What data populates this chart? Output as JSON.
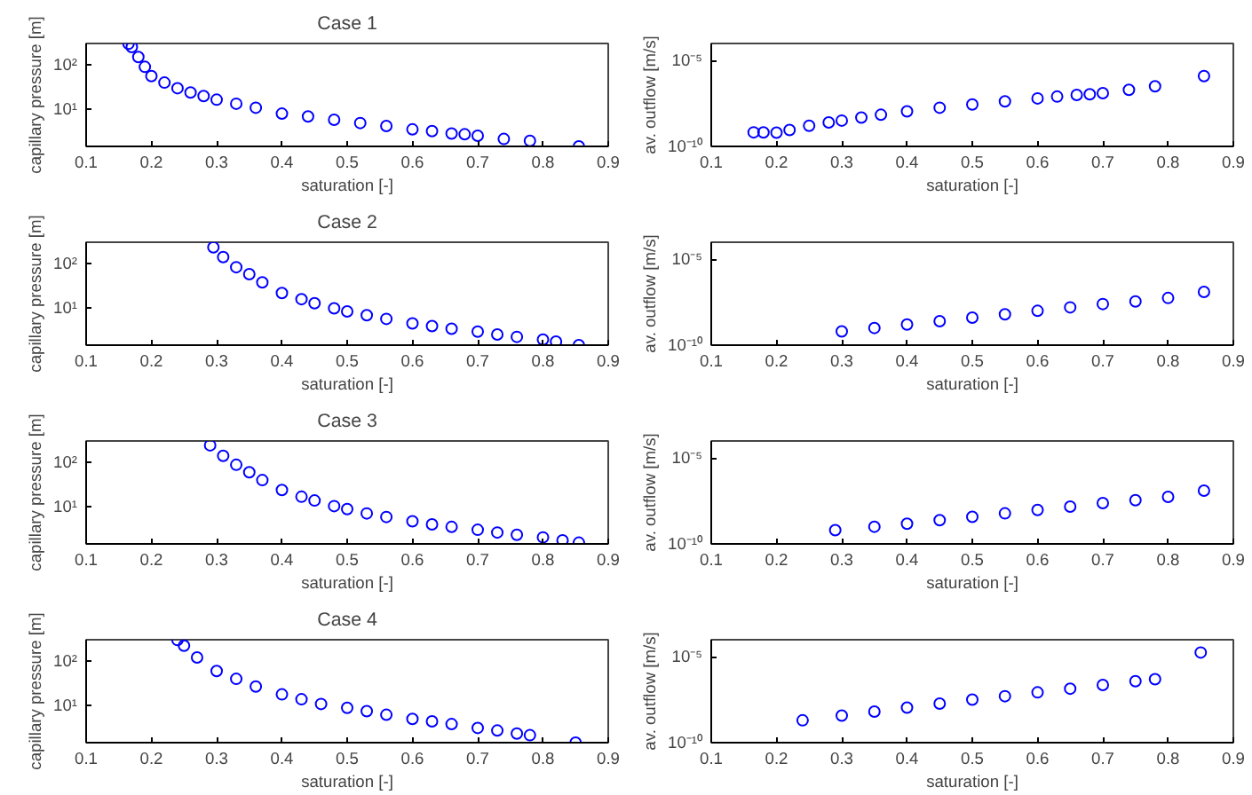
{
  "chart_data": [
    {
      "type": "scatter",
      "title": "Case 1",
      "xlabel": "saturation [-]",
      "ylabel": "capillary pressure [m]",
      "log": "y",
      "marker": "circle",
      "xlim": [
        0.1,
        0.9
      ],
      "xticks": [
        0.1,
        0.2,
        0.3,
        0.4,
        0.5,
        0.6,
        0.7,
        0.8,
        0.9
      ],
      "ylim": [
        1.5,
        300
      ],
      "yticks": [
        {
          "value": 10,
          "label": "10¹"
        },
        {
          "value": 100,
          "label": "10²"
        }
      ],
      "series": [
        {
          "color": "#0000ff",
          "x": [
            0.165,
            0.17,
            0.18,
            0.19,
            0.2,
            0.22,
            0.24,
            0.26,
            0.28,
            0.3,
            0.33,
            0.36,
            0.4,
            0.44,
            0.48,
            0.52,
            0.56,
            0.6,
            0.63,
            0.66,
            0.68,
            0.7,
            0.74,
            0.78,
            0.855
          ],
          "values": [
            295,
            250,
            150,
            90,
            56,
            40,
            30,
            24,
            20,
            16.6,
            13.5,
            11,
            8.1,
            7,
            5.9,
            5,
            4.3,
            3.6,
            3.3,
            2.9,
            2.8,
            2.6,
            2.2,
            2.0,
            1.5
          ]
        }
      ]
    },
    {
      "type": "scatter",
      "xlabel": "saturation [-]",
      "ylabel": "av. outflow [m/s]",
      "log": "y",
      "marker": "circle",
      "xlim": [
        0.1,
        0.9
      ],
      "xticks": [
        0.1,
        0.2,
        0.3,
        0.4,
        0.5,
        0.6,
        0.7,
        0.8,
        0.9
      ],
      "ylim": [
        1e-10,
        0.0001
      ],
      "yticks": [
        {
          "value": 1e-10,
          "label": "10⁻¹⁰"
        },
        {
          "value": 1e-05,
          "label": "10⁻⁵"
        }
      ],
      "series": [
        {
          "color": "#0000ff",
          "x": [
            0.165,
            0.18,
            0.2,
            0.22,
            0.25,
            0.28,
            0.3,
            0.33,
            0.36,
            0.4,
            0.45,
            0.5,
            0.55,
            0.6,
            0.63,
            0.66,
            0.68,
            0.7,
            0.74,
            0.78,
            0.855
          ],
          "values": [
            6.6e-10,
            6.5e-10,
            6.3e-10,
            9e-10,
            1.6e-09,
            2.5e-09,
            3.2e-09,
            4.8e-09,
            7e-09,
            1.1e-08,
            1.8e-08,
            2.8e-08,
            4.2e-08,
            6.3e-08,
            8e-08,
            1e-07,
            1.1e-07,
            1.26e-07,
            2e-07,
            3.2e-07,
            1.26e-06
          ]
        }
      ]
    },
    {
      "type": "scatter",
      "title": "Case 2",
      "xlabel": "saturation [-]",
      "ylabel": "capillary pressure [m]",
      "log": "y",
      "marker": "circle",
      "xlim": [
        0.1,
        0.9
      ],
      "xticks": [
        0.1,
        0.2,
        0.3,
        0.4,
        0.5,
        0.6,
        0.7,
        0.8,
        0.9
      ],
      "ylim": [
        1.5,
        300
      ],
      "yticks": [
        {
          "value": 10,
          "label": "10¹"
        },
        {
          "value": 100,
          "label": "10²"
        }
      ],
      "series": [
        {
          "color": "#0000ff",
          "x": [
            0.295,
            0.31,
            0.33,
            0.35,
            0.37,
            0.4,
            0.43,
            0.45,
            0.48,
            0.5,
            0.53,
            0.56,
            0.6,
            0.63,
            0.66,
            0.7,
            0.73,
            0.76,
            0.8,
            0.82,
            0.855
          ],
          "values": [
            230,
            140,
            83,
            58,
            38,
            22,
            16,
            13,
            10,
            8.5,
            7,
            5.8,
            4.6,
            4,
            3.5,
            3,
            2.6,
            2.3,
            2,
            1.8,
            1.5
          ]
        }
      ]
    },
    {
      "type": "scatter",
      "xlabel": "saturation [-]",
      "ylabel": "av. outflow [m/s]",
      "log": "y",
      "marker": "circle",
      "xlim": [
        0.1,
        0.9
      ],
      "xticks": [
        0.1,
        0.2,
        0.3,
        0.4,
        0.5,
        0.6,
        0.7,
        0.8,
        0.9
      ],
      "ylim": [
        1e-10,
        0.0001
      ],
      "yticks": [
        {
          "value": 1e-10,
          "label": "10⁻¹⁰"
        },
        {
          "value": 1e-05,
          "label": "10⁻⁵"
        }
      ],
      "series": [
        {
          "color": "#0000ff",
          "x": [
            0.3,
            0.35,
            0.4,
            0.45,
            0.5,
            0.55,
            0.6,
            0.65,
            0.7,
            0.75,
            0.8,
            0.855
          ],
          "values": [
            6.3e-10,
            1e-09,
            1.6e-09,
            2.5e-09,
            4e-09,
            6.3e-09,
            1e-08,
            1.6e-08,
            2.5e-08,
            3.5e-08,
            5.6e-08,
            1.26e-07
          ]
        }
      ]
    },
    {
      "type": "scatter",
      "title": "Case 3",
      "xlabel": "saturation [-]",
      "ylabel": "capillary pressure [m]",
      "log": "y",
      "marker": "circle",
      "xlim": [
        0.1,
        0.9
      ],
      "xticks": [
        0.1,
        0.2,
        0.3,
        0.4,
        0.5,
        0.6,
        0.7,
        0.8,
        0.9
      ],
      "ylim": [
        1.5,
        300
      ],
      "yticks": [
        {
          "value": 10,
          "label": "10¹"
        },
        {
          "value": 100,
          "label": "10²"
        }
      ],
      "series": [
        {
          "color": "#0000ff",
          "x": [
            0.29,
            0.31,
            0.33,
            0.35,
            0.37,
            0.4,
            0.43,
            0.45,
            0.48,
            0.5,
            0.53,
            0.56,
            0.6,
            0.63,
            0.66,
            0.7,
            0.73,
            0.76,
            0.8,
            0.83,
            0.855
          ],
          "values": [
            240,
            140,
            88,
            60,
            40,
            24,
            17,
            14,
            10.5,
            9,
            7.2,
            6,
            4.8,
            4.1,
            3.6,
            3.1,
            2.7,
            2.4,
            2.1,
            1.8,
            1.6
          ]
        }
      ]
    },
    {
      "type": "scatter",
      "xlabel": "saturation [-]",
      "ylabel": "av. outflow [m/s]",
      "log": "y",
      "marker": "circle",
      "xlim": [
        0.1,
        0.9
      ],
      "xticks": [
        0.1,
        0.2,
        0.3,
        0.4,
        0.5,
        0.6,
        0.7,
        0.8,
        0.9
      ],
      "ylim": [
        1e-10,
        0.0001
      ],
      "yticks": [
        {
          "value": 1e-10,
          "label": "10⁻¹⁰"
        },
        {
          "value": 1e-05,
          "label": "10⁻⁵"
        }
      ],
      "series": [
        {
          "color": "#0000ff",
          "x": [
            0.29,
            0.35,
            0.4,
            0.45,
            0.5,
            0.55,
            0.6,
            0.65,
            0.7,
            0.75,
            0.8,
            0.855
          ],
          "values": [
            6.3e-10,
            1e-09,
            1.5e-09,
            2.4e-09,
            3.8e-09,
            6e-09,
            9.5e-09,
            1.5e-08,
            2.4e-08,
            3.5e-08,
            5.5e-08,
            1.26e-07
          ]
        }
      ]
    },
    {
      "type": "scatter",
      "title": "Case 4",
      "xlabel": "saturation [-]",
      "ylabel": "capillary pressure [m]",
      "log": "y",
      "marker": "circle",
      "xlim": [
        0.1,
        0.9
      ],
      "xticks": [
        0.1,
        0.2,
        0.3,
        0.4,
        0.5,
        0.6,
        0.7,
        0.8,
        0.9
      ],
      "ylim": [
        1.5,
        300
      ],
      "yticks": [
        {
          "value": 10,
          "label": "10¹"
        },
        {
          "value": 100,
          "label": "10²"
        }
      ],
      "series": [
        {
          "color": "#0000ff",
          "x": [
            0.24,
            0.25,
            0.27,
            0.3,
            0.33,
            0.36,
            0.4,
            0.43,
            0.46,
            0.5,
            0.53,
            0.56,
            0.6,
            0.63,
            0.66,
            0.7,
            0.73,
            0.76,
            0.78,
            0.85
          ],
          "values": [
            295,
            220,
            120,
            60,
            40,
            27,
            18,
            14,
            11,
            9,
            7.6,
            6.3,
            5.1,
            4.5,
            3.9,
            3.2,
            2.8,
            2.4,
            2.2,
            1.5
          ]
        }
      ]
    },
    {
      "type": "scatter",
      "xlabel": "saturation [-]",
      "ylabel": "av. outflow [m/s]",
      "log": "y",
      "marker": "circle",
      "xlim": [
        0.1,
        0.9
      ],
      "xticks": [
        0.1,
        0.2,
        0.3,
        0.4,
        0.5,
        0.6,
        0.7,
        0.8,
        0.9
      ],
      "ylim": [
        1e-10,
        0.0001
      ],
      "yticks": [
        {
          "value": 1e-10,
          "label": "10⁻¹⁰"
        },
        {
          "value": 1e-05,
          "label": "10⁻⁵"
        }
      ],
      "series": [
        {
          "color": "#0000ff",
          "x": [
            0.24,
            0.3,
            0.35,
            0.4,
            0.45,
            0.5,
            0.55,
            0.6,
            0.65,
            0.7,
            0.75,
            0.78,
            0.85
          ],
          "values": [
            2e-09,
            3.8e-09,
            6.5e-09,
            1.1e-08,
            1.9e-08,
            3.2e-08,
            5.1e-08,
            8.5e-08,
            1.4e-07,
            2.3e-07,
            3.8e-07,
            5e-07,
            1.8e-05
          ]
        }
      ]
    }
  ]
}
